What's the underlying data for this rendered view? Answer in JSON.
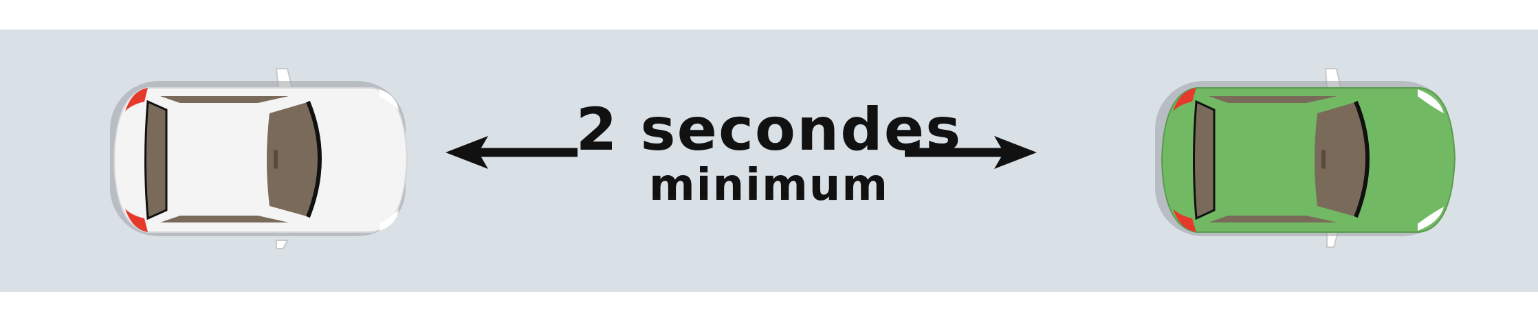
{
  "diagram": {
    "label_line1": "2 secondes",
    "label_line2": "minimum",
    "colors": {
      "road": "#d9e0e6",
      "background": "#ffffff",
      "car_rear": "#f4f4f4",
      "car_front": "#72b964",
      "glass": "#7a6a5a",
      "tail_light": "#e53a2b",
      "arrow": "#111111"
    }
  }
}
